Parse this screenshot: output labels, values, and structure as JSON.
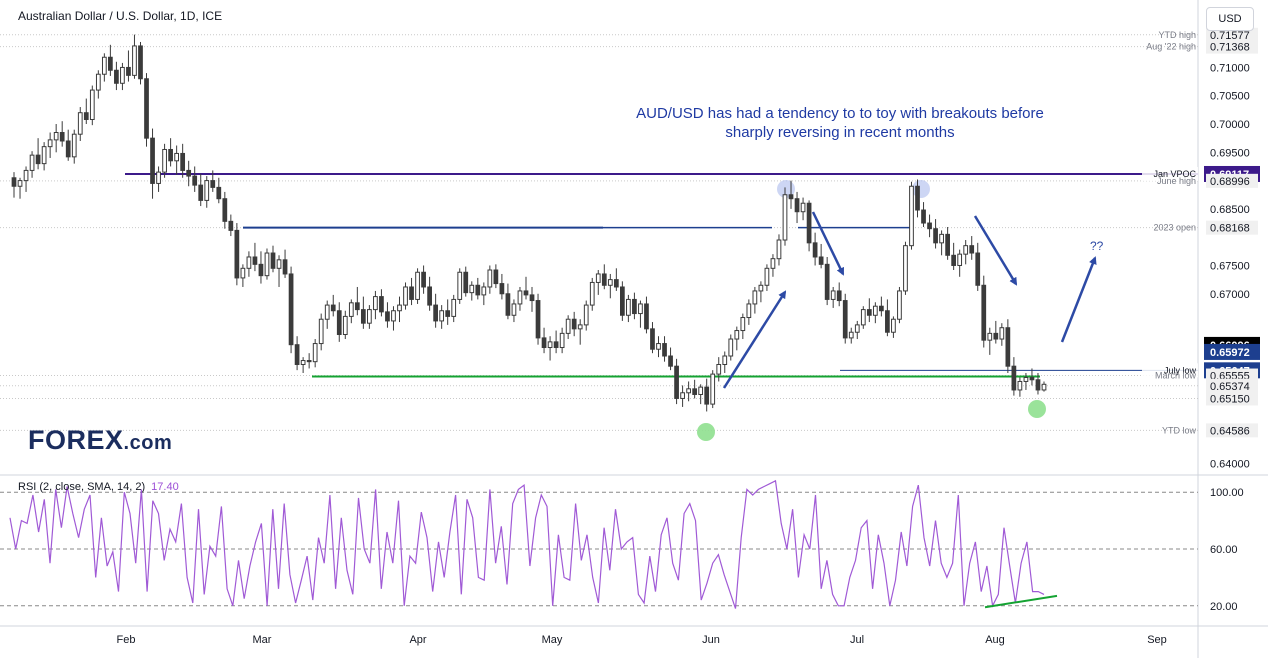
{
  "header": {
    "title": "Australian Dollar / U.S. Dollar, 1D, ICE",
    "currency_button": "USD"
  },
  "logo": {
    "text": "F",
    "o": "O",
    "rest": "REX",
    "suffix": ".com"
  },
  "annotation_text": "AUD/USD has had a tendency to to toy with breakouts before sharply reversing in recent months",
  "question_marks": "??",
  "rsi_label": {
    "name": "RSI (2, close, SMA, 14, 2)",
    "value": "17.40"
  },
  "colors": {
    "up": "#ffffff",
    "down": "#3b3b3b",
    "wick": "#3b3b3b",
    "vpoc_line": "#3c1a8a",
    "range_line": "#1d3f8f",
    "support_line": "#14a332",
    "rsi_line": "#a05ad6",
    "arrow": "#2d4aa5",
    "green_circle": "#8fe08f",
    "blue_circle": "#b8c4f0"
  },
  "chart_data": {
    "type": "candlestick",
    "symbol": "AUD/USD",
    "timeframe": "1D",
    "x_tick_labels": [
      "Feb",
      "Mar",
      "Apr",
      "May",
      "Jun",
      "Jul",
      "Aug",
      "Sep"
    ],
    "y_tick_labels": [
      "0.71000",
      "0.70500",
      "0.70000",
      "0.69500",
      "0.68500",
      "0.67500",
      "0.67000",
      "0.64000"
    ],
    "ylim": [
      0.6385,
      0.7175
    ],
    "price_labels": [
      {
        "text": "YTD high",
        "value": "0.71577",
        "price": 0.71577,
        "style": "plain"
      },
      {
        "text": "Aug '22 high",
        "value": "0.71368",
        "price": 0.71368,
        "style": "plain"
      },
      {
        "text": "Jan VPOC",
        "value": "0.69117",
        "price": 0.69117,
        "style": "purple"
      },
      {
        "text": "June high",
        "value": "0.68996",
        "price": 0.68996,
        "style": "plain"
      },
      {
        "text": "2023 open",
        "value": "0.68168",
        "price": 0.68168,
        "style": "plain"
      },
      {
        "text": "",
        "value": "0.66096",
        "price": 0.66096,
        "style": "black"
      },
      {
        "text": "",
        "value": "0.65972",
        "price": 0.65972,
        "style": "blue"
      },
      {
        "text": "July low",
        "value": "0.65647",
        "price": 0.65647,
        "style": "blue"
      },
      {
        "text": "March low",
        "value": "0.65555",
        "price": 0.65555,
        "style": "plain"
      },
      {
        "text": "",
        "value": "0.65374",
        "price": 0.65374,
        "style": "plain"
      },
      {
        "text": "",
        "value": "0.65150",
        "price": 0.6515,
        "style": "plain"
      },
      {
        "text": "YTD low",
        "value": "0.64586",
        "price": 0.64586,
        "style": "plain"
      }
    ],
    "rsi": {
      "ylim": [
        0,
        100
      ],
      "tick_labels": [
        "100.00",
        "60.00",
        "20.00"
      ],
      "levels": [
        90,
        50,
        10
      ],
      "values": [
        72,
        50,
        70,
        68,
        88,
        62,
        85,
        40,
        92,
        65,
        94,
        75,
        58,
        78,
        88,
        30,
        72,
        38,
        48,
        20,
        90,
        75,
        40,
        92,
        20,
        84,
        75,
        42,
        64,
        55,
        82,
        30,
        12,
        78,
        18,
        52,
        45,
        80,
        22,
        10,
        42,
        15,
        38,
        55,
        68,
        10,
        78,
        22,
        82,
        32,
        12,
        28,
        45,
        14,
        58,
        40,
        88,
        22,
        72,
        35,
        18,
        86,
        50,
        40,
        92,
        22,
        62,
        40,
        84,
        10,
        45,
        40,
        76,
        58,
        20,
        55,
        30,
        62,
        88,
        18,
        85,
        72,
        30,
        28,
        92,
        40,
        66,
        25,
        82,
        92,
        95,
        38,
        72,
        88,
        80,
        10,
        60,
        30,
        28,
        82,
        42,
        60,
        30,
        12,
        65,
        35,
        78,
        50,
        55,
        58,
        18,
        12,
        45,
        20,
        60,
        72,
        40,
        28,
        75,
        82,
        70,
        14,
        26,
        40,
        46,
        32,
        20,
        8,
        58,
        92,
        88,
        92,
        94,
        96,
        98,
        68,
        50,
        78,
        30,
        60,
        50,
        88,
        22,
        42,
        18,
        10,
        10,
        30,
        42,
        65,
        70,
        22,
        60,
        40,
        10,
        28,
        62,
        38,
        80,
        95,
        58,
        38,
        70,
        40,
        30,
        40,
        88,
        10,
        40,
        55,
        20,
        38,
        10,
        18,
        65,
        38,
        12,
        40,
        55,
        20,
        20,
        18
      ]
    },
    "horizontal_lines": [
      {
        "name": "jan-vpoc",
        "price": 0.69117
      },
      {
        "name": "range-top",
        "price": 0.68168
      },
      {
        "name": "july-low",
        "price": 0.65647
      },
      {
        "name": "march-low",
        "price": 0.65555
      }
    ],
    "candles": [
      [
        0.6905,
        0.6915,
        0.687,
        0.689
      ],
      [
        0.689,
        0.6905,
        0.6868,
        0.69
      ],
      [
        0.69,
        0.6925,
        0.688,
        0.6918
      ],
      [
        0.6918,
        0.6952,
        0.6905,
        0.6945
      ],
      [
        0.6945,
        0.6975,
        0.692,
        0.693
      ],
      [
        0.693,
        0.6968,
        0.6918,
        0.696
      ],
      [
        0.696,
        0.6985,
        0.694,
        0.6972
      ],
      [
        0.6972,
        0.7,
        0.695,
        0.6985
      ],
      [
        0.6985,
        0.7005,
        0.696,
        0.697
      ],
      [
        0.697,
        0.699,
        0.6935,
        0.6942
      ],
      [
        0.6942,
        0.699,
        0.693,
        0.6982
      ],
      [
        0.6982,
        0.703,
        0.697,
        0.702
      ],
      [
        0.702,
        0.7045,
        0.7,
        0.7008
      ],
      [
        0.7008,
        0.7068,
        0.6998,
        0.706
      ],
      [
        0.706,
        0.7095,
        0.7045,
        0.7088
      ],
      [
        0.7088,
        0.7125,
        0.7075,
        0.7118
      ],
      [
        0.7118,
        0.714,
        0.7085,
        0.7095
      ],
      [
        0.7095,
        0.711,
        0.706,
        0.7072
      ],
      [
        0.7072,
        0.7108,
        0.706,
        0.71
      ],
      [
        0.71,
        0.713,
        0.7075,
        0.7086
      ],
      [
        0.7086,
        0.7158,
        0.708,
        0.7138
      ],
      [
        0.7138,
        0.7145,
        0.707,
        0.708
      ],
      [
        0.708,
        0.709,
        0.696,
        0.6975
      ],
      [
        0.6975,
        0.6992,
        0.6868,
        0.6895
      ],
      [
        0.6895,
        0.6925,
        0.688,
        0.6915
      ],
      [
        0.6915,
        0.6965,
        0.6905,
        0.6955
      ],
      [
        0.6955,
        0.6975,
        0.6925,
        0.6935
      ],
      [
        0.6935,
        0.6962,
        0.691,
        0.6948
      ],
      [
        0.6948,
        0.6965,
        0.6905,
        0.6918
      ],
      [
        0.6918,
        0.6935,
        0.689,
        0.6908
      ],
      [
        0.6908,
        0.6925,
        0.688,
        0.6892
      ],
      [
        0.6892,
        0.6912,
        0.6855,
        0.6865
      ],
      [
        0.6865,
        0.6908,
        0.6852,
        0.69
      ],
      [
        0.69,
        0.6918,
        0.688,
        0.6888
      ],
      [
        0.6888,
        0.6905,
        0.686,
        0.6868
      ],
      [
        0.6868,
        0.688,
        0.6815,
        0.6828
      ],
      [
        0.6828,
        0.684,
        0.6802,
        0.6812
      ],
      [
        0.6812,
        0.6825,
        0.6715,
        0.6728
      ],
      [
        0.6728,
        0.6752,
        0.6712,
        0.6745
      ],
      [
        0.6745,
        0.6775,
        0.673,
        0.6765
      ],
      [
        0.6765,
        0.679,
        0.674,
        0.6752
      ],
      [
        0.6752,
        0.6775,
        0.6718,
        0.6732
      ],
      [
        0.6732,
        0.678,
        0.6725,
        0.6772
      ],
      [
        0.6772,
        0.6785,
        0.6738,
        0.6745
      ],
      [
        0.6745,
        0.6768,
        0.6712,
        0.676
      ],
      [
        0.676,
        0.6778,
        0.6728,
        0.6735
      ],
      [
        0.6735,
        0.6748,
        0.6595,
        0.661
      ],
      [
        0.661,
        0.6625,
        0.6565,
        0.6575
      ],
      [
        0.6575,
        0.6588,
        0.656,
        0.6582
      ],
      [
        0.6582,
        0.6595,
        0.6568,
        0.658
      ],
      [
        0.658,
        0.662,
        0.657,
        0.6612
      ],
      [
        0.6612,
        0.6665,
        0.66,
        0.6655
      ],
      [
        0.6655,
        0.6688,
        0.6638,
        0.668
      ],
      [
        0.668,
        0.6698,
        0.666,
        0.667
      ],
      [
        0.667,
        0.6685,
        0.6615,
        0.6628
      ],
      [
        0.6628,
        0.667,
        0.662,
        0.666
      ],
      [
        0.666,
        0.669,
        0.6648,
        0.6684
      ],
      [
        0.6684,
        0.6712,
        0.6662,
        0.6672
      ],
      [
        0.6672,
        0.6695,
        0.6638,
        0.6648
      ],
      [
        0.6648,
        0.668,
        0.6638,
        0.6672
      ],
      [
        0.6672,
        0.6705,
        0.6655,
        0.6695
      ],
      [
        0.6695,
        0.6708,
        0.666,
        0.6668
      ],
      [
        0.6668,
        0.6685,
        0.664,
        0.6652
      ],
      [
        0.6652,
        0.6678,
        0.6635,
        0.667
      ],
      [
        0.667,
        0.6695,
        0.665,
        0.668
      ],
      [
        0.668,
        0.672,
        0.6672,
        0.6712
      ],
      [
        0.6712,
        0.6728,
        0.668,
        0.669
      ],
      [
        0.669,
        0.6745,
        0.6682,
        0.6738
      ],
      [
        0.6738,
        0.675,
        0.67,
        0.6712
      ],
      [
        0.6712,
        0.673,
        0.667,
        0.668
      ],
      [
        0.668,
        0.67,
        0.664,
        0.6652
      ],
      [
        0.6652,
        0.668,
        0.6638,
        0.667
      ],
      [
        0.667,
        0.669,
        0.6645,
        0.666
      ],
      [
        0.666,
        0.6698,
        0.665,
        0.669
      ],
      [
        0.669,
        0.6745,
        0.6682,
        0.6738
      ],
      [
        0.6738,
        0.6748,
        0.6695,
        0.6702
      ],
      [
        0.6702,
        0.6722,
        0.6688,
        0.6715
      ],
      [
        0.6715,
        0.6728,
        0.669,
        0.6698
      ],
      [
        0.6698,
        0.672,
        0.668,
        0.6712
      ],
      [
        0.6712,
        0.675,
        0.67,
        0.6742
      ],
      [
        0.6742,
        0.6752,
        0.671,
        0.6718
      ],
      [
        0.6718,
        0.6735,
        0.669,
        0.67
      ],
      [
        0.67,
        0.6718,
        0.6655,
        0.6662
      ],
      [
        0.6662,
        0.669,
        0.665,
        0.6682
      ],
      [
        0.6682,
        0.6712,
        0.667,
        0.6705
      ],
      [
        0.6705,
        0.673,
        0.669,
        0.6698
      ],
      [
        0.6698,
        0.6712,
        0.6668,
        0.6688
      ],
      [
        0.6688,
        0.67,
        0.661,
        0.6622
      ],
      [
        0.6622,
        0.664,
        0.6595,
        0.6605
      ],
      [
        0.6605,
        0.6625,
        0.6582,
        0.6615
      ],
      [
        0.6615,
        0.6635,
        0.6595,
        0.6605
      ],
      [
        0.6605,
        0.664,
        0.6595,
        0.663
      ],
      [
        0.663,
        0.6662,
        0.662,
        0.6655
      ],
      [
        0.6655,
        0.6668,
        0.6625,
        0.6638
      ],
      [
        0.6638,
        0.6655,
        0.661,
        0.6645
      ],
      [
        0.6645,
        0.6688,
        0.6635,
        0.668
      ],
      [
        0.668,
        0.6728,
        0.667,
        0.672
      ],
      [
        0.672,
        0.6742,
        0.6698,
        0.6735
      ],
      [
        0.6735,
        0.6752,
        0.6708,
        0.6715
      ],
      [
        0.6715,
        0.6735,
        0.6692,
        0.6725
      ],
      [
        0.6725,
        0.6745,
        0.6705,
        0.6712
      ],
      [
        0.6712,
        0.6722,
        0.6652,
        0.6662
      ],
      [
        0.6662,
        0.6698,
        0.665,
        0.669
      ],
      [
        0.669,
        0.6702,
        0.6655,
        0.6665
      ],
      [
        0.6665,
        0.6688,
        0.664,
        0.6682
      ],
      [
        0.6682,
        0.6695,
        0.663,
        0.6638
      ],
      [
        0.6638,
        0.665,
        0.6595,
        0.6602
      ],
      [
        0.6602,
        0.6625,
        0.6588,
        0.6612
      ],
      [
        0.6612,
        0.6625,
        0.658,
        0.659
      ],
      [
        0.659,
        0.6605,
        0.6565,
        0.6572
      ],
      [
        0.6572,
        0.6585,
        0.6505,
        0.6515
      ],
      [
        0.6515,
        0.6538,
        0.65,
        0.6525
      ],
      [
        0.6525,
        0.6545,
        0.651,
        0.6532
      ],
      [
        0.6532,
        0.6548,
        0.6515,
        0.6522
      ],
      [
        0.6522,
        0.654,
        0.6505,
        0.6535
      ],
      [
        0.6535,
        0.655,
        0.6492,
        0.6505
      ],
      [
        0.6505,
        0.6565,
        0.6498,
        0.6558
      ],
      [
        0.6558,
        0.6588,
        0.6545,
        0.6575
      ],
      [
        0.6575,
        0.6598,
        0.656,
        0.659
      ],
      [
        0.659,
        0.6628,
        0.6582,
        0.662
      ],
      [
        0.662,
        0.6642,
        0.66,
        0.6635
      ],
      [
        0.6635,
        0.6665,
        0.662,
        0.6658
      ],
      [
        0.6658,
        0.669,
        0.6645,
        0.6682
      ],
      [
        0.6682,
        0.6712,
        0.6665,
        0.6705
      ],
      [
        0.6705,
        0.6722,
        0.6685,
        0.6715
      ],
      [
        0.6715,
        0.6752,
        0.6705,
        0.6745
      ],
      [
        0.6745,
        0.677,
        0.673,
        0.6762
      ],
      [
        0.6762,
        0.6805,
        0.675,
        0.6795
      ],
      [
        0.6795,
        0.6888,
        0.6785,
        0.6875
      ],
      [
        0.6875,
        0.69,
        0.685,
        0.6868
      ],
      [
        0.6868,
        0.688,
        0.6825,
        0.6845
      ],
      [
        0.6845,
        0.687,
        0.683,
        0.686
      ],
      [
        0.686,
        0.6865,
        0.6775,
        0.679
      ],
      [
        0.679,
        0.6808,
        0.675,
        0.6765
      ],
      [
        0.6765,
        0.6788,
        0.6745,
        0.6752
      ],
      [
        0.6752,
        0.6765,
        0.668,
        0.669
      ],
      [
        0.669,
        0.6712,
        0.6675,
        0.6705
      ],
      [
        0.6705,
        0.672,
        0.6678,
        0.6688
      ],
      [
        0.6688,
        0.67,
        0.6612,
        0.6622
      ],
      [
        0.6622,
        0.664,
        0.6612,
        0.6632
      ],
      [
        0.6632,
        0.6652,
        0.662,
        0.6645
      ],
      [
        0.6645,
        0.6678,
        0.6638,
        0.6672
      ],
      [
        0.6672,
        0.6692,
        0.665,
        0.6662
      ],
      [
        0.6662,
        0.6685,
        0.6648,
        0.6678
      ],
      [
        0.6678,
        0.6695,
        0.666,
        0.667
      ],
      [
        0.667,
        0.669,
        0.6625,
        0.6632
      ],
      [
        0.6632,
        0.666,
        0.6622,
        0.6655
      ],
      [
        0.6655,
        0.6712,
        0.6648,
        0.6705
      ],
      [
        0.6705,
        0.6792,
        0.6698,
        0.6785
      ],
      [
        0.6785,
        0.6898,
        0.6778,
        0.689
      ],
      [
        0.689,
        0.6902,
        0.6835,
        0.6848
      ],
      [
        0.6848,
        0.6862,
        0.6818,
        0.6825
      ],
      [
        0.6825,
        0.684,
        0.68,
        0.6815
      ],
      [
        0.6815,
        0.6832,
        0.678,
        0.679
      ],
      [
        0.679,
        0.6812,
        0.6768,
        0.6805
      ],
      [
        0.6805,
        0.6818,
        0.676,
        0.6768
      ],
      [
        0.6768,
        0.679,
        0.6742,
        0.675
      ],
      [
        0.675,
        0.6778,
        0.673,
        0.677
      ],
      [
        0.677,
        0.6795,
        0.6752,
        0.6785
      ],
      [
        0.6785,
        0.6802,
        0.676,
        0.6772
      ],
      [
        0.6772,
        0.679,
        0.6705,
        0.6715
      ],
      [
        0.6715,
        0.6732,
        0.6605,
        0.6618
      ],
      [
        0.6618,
        0.664,
        0.6592,
        0.663
      ],
      [
        0.663,
        0.6652,
        0.6612,
        0.662
      ],
      [
        0.662,
        0.6648,
        0.6608,
        0.664
      ],
      [
        0.664,
        0.6655,
        0.656,
        0.6572
      ],
      [
        0.6572,
        0.6588,
        0.652,
        0.653
      ],
      [
        0.653,
        0.6552,
        0.6518,
        0.6545
      ],
      [
        0.6545,
        0.656,
        0.653,
        0.6552
      ],
      [
        0.6552,
        0.6568,
        0.6538,
        0.6548
      ],
      [
        0.6548,
        0.656,
        0.6522,
        0.653
      ],
      [
        0.653,
        0.6545,
        0.6527,
        0.654
      ]
    ]
  }
}
